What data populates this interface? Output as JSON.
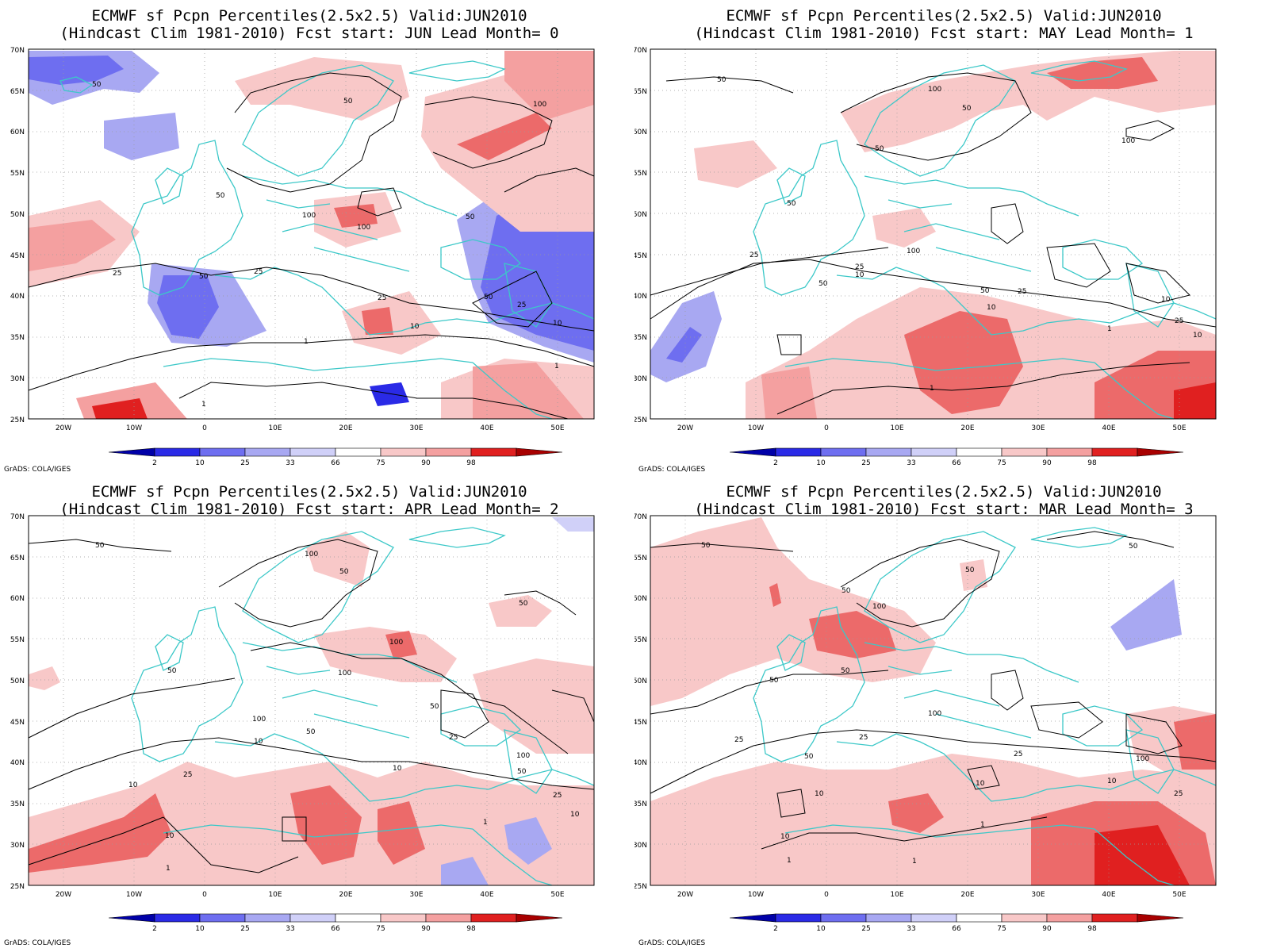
{
  "credit": "GrADS: COLA/IGES",
  "colors": {
    "coast": "#3cc8c8",
    "contour": "#000000",
    "frame": "#000000"
  },
  "legend": {
    "labels": [
      "2",
      "10",
      "25",
      "33",
      "66",
      "75",
      "90",
      "98"
    ],
    "colors": [
      "#0000a8",
      "#2a2ae6",
      "#6e6ef0",
      "#a8a8f2",
      "#d0d0f8",
      "#ffffff",
      "#f8c8c8",
      "#f4a0a0",
      "#ec6a6a",
      "#e02020",
      "#a80000"
    ]
  },
  "axes": {
    "lat_labels": [
      "70N",
      "65N",
      "60N",
      "55N",
      "50N",
      "45N",
      "40N",
      "35N",
      "30N",
      "25N"
    ],
    "lon_labels": [
      "20W",
      "10W",
      "0",
      "10E",
      "20E",
      "30E",
      "40E",
      "50E"
    ]
  },
  "panels": [
    {
      "title1": "ECMWF sf Pcpn Percentiles(2.5x2.5) Valid:JUN2010",
      "title2": "(Hindcast Clim 1981-2010) Fcst start: JUN  Lead Month= 0",
      "contour_labels": [
        "50",
        "50",
        "100",
        "50",
        "100",
        "100",
        "50",
        "25",
        "50",
        "25",
        "25",
        "50",
        "25",
        "10",
        "10",
        "1",
        "1",
        "1"
      ]
    },
    {
      "title1": "ECMWF sf Pcpn Percentiles(2.5x2.5) Valid:JUN2010",
      "title2": "(Hindcast Clim 1981-2010) Fcst start: MAY  Lead Month= 1",
      "contour_labels": [
        "50",
        "100",
        "50",
        "50",
        "100",
        "50",
        "100",
        "25",
        "25",
        "50",
        "10",
        "50",
        "25",
        "10",
        "10",
        "25",
        "10",
        "1",
        "1"
      ]
    },
    {
      "title1": "ECMWF sf Pcpn Percentiles(2.5x2.5) Valid:JUN2010",
      "title2": "(Hindcast Clim 1981-2010) Fcst start: APR  Lead Month= 2",
      "contour_labels": [
        "50",
        "100",
        "50",
        "50",
        "100",
        "100",
        "50",
        "100",
        "10",
        "50",
        "50",
        "25",
        "25",
        "10",
        "10",
        "100",
        "50",
        "25",
        "10",
        "1",
        "10",
        "1"
      ]
    },
    {
      "title1": "ECMWF sf Pcpn Percentiles(2.5x2.5) Valid:JUN2010",
      "title2": "(Hindcast Clim 1981-2010) Fcst start: MAR  Lead Month= 3",
      "contour_labels": [
        "50",
        "50",
        "100",
        "50",
        "50",
        "50",
        "50",
        "100",
        "25",
        "25",
        "50",
        "25",
        "10",
        "10",
        "100",
        "25",
        "10",
        "10",
        "1",
        "1",
        "1"
      ]
    }
  ]
}
